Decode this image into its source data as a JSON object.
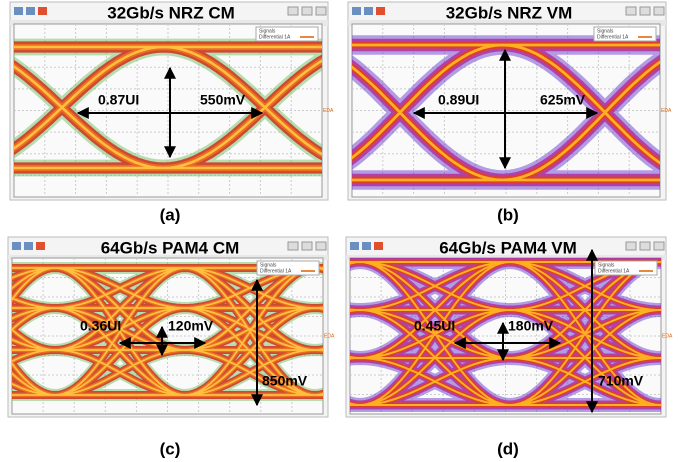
{
  "panels": [
    {
      "title": "32Gb/s NRZ CM",
      "width_label": "0.87UI",
      "height_label": "550mV",
      "caption": "(a)",
      "legend_title": "Signals",
      "legend_entry": "Differential 1A",
      "marker": "EDA"
    },
    {
      "title": "32Gb/s NRZ VM",
      "width_label": "0.89UI",
      "height_label": "625mV",
      "caption": "(b)",
      "legend_title": "Signals",
      "legend_entry": "Differential 1A",
      "marker": "EDA"
    },
    {
      "title": "64Gb/s PAM4 CM",
      "width_label": "0.36UI",
      "height_label": "120mV",
      "total_label": "850mV",
      "caption": "(c)",
      "legend_title": "Signals",
      "legend_entry": "Differential 1A",
      "marker": "EDA"
    },
    {
      "title": "64Gb/s PAM4 VM",
      "width_label": "0.45UI",
      "height_label": "180mV",
      "total_label": "710mV",
      "caption": "(d)",
      "legend_title": "Signals",
      "legend_entry": "Differential 1A",
      "marker": "EDA"
    }
  ]
}
